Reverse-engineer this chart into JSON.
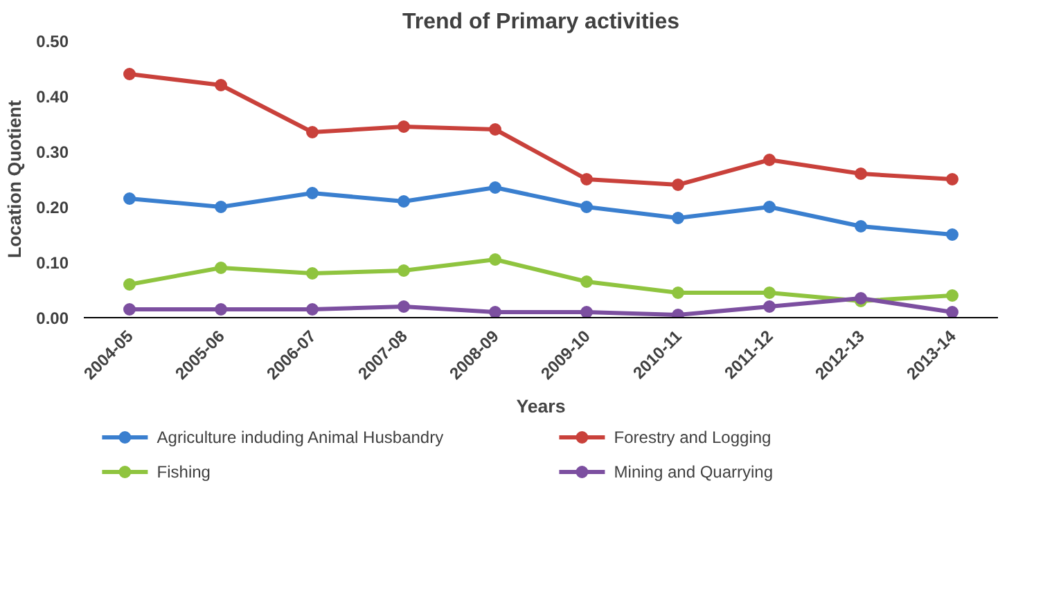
{
  "chart_data": {
    "type": "line",
    "title": "Trend of Primary activities",
    "xlabel": "Years",
    "ylabel": "Location Quotient",
    "categories": [
      "2004-05",
      "2005-06",
      "2006-07",
      "2007-08",
      "2008-09",
      "2009-10",
      "2010-11",
      "2011-12",
      "2012-13",
      "2013-14"
    ],
    "series": [
      {
        "name": "Agriculture induding Animal Husbandry",
        "color": "#3a7fcf",
        "values": [
          0.215,
          0.2,
          0.225,
          0.21,
          0.235,
          0.2,
          0.18,
          0.2,
          0.165,
          0.15
        ]
      },
      {
        "name": "Forestry and Logging",
        "color": "#c9413b",
        "values": [
          0.44,
          0.42,
          0.335,
          0.345,
          0.34,
          0.25,
          0.24,
          0.285,
          0.26,
          0.25
        ]
      },
      {
        "name": "Fishing",
        "color": "#8fc43f",
        "values": [
          0.06,
          0.09,
          0.08,
          0.085,
          0.105,
          0.065,
          0.045,
          0.045,
          0.03,
          0.04
        ]
      },
      {
        "name": "Mining and Quarrying",
        "color": "#7c4fa0",
        "values": [
          0.015,
          0.015,
          0.015,
          0.02,
          0.01,
          0.01,
          0.005,
          0.02,
          0.035,
          0.01
        ]
      }
    ],
    "ylim": [
      0,
      0.5
    ],
    "yticks": [
      {
        "value": 0,
        "label": "0.00"
      },
      {
        "value": 0.1,
        "label": "0.10"
      },
      {
        "value": 0.2,
        "label": "0.20"
      },
      {
        "value": 0.3,
        "label": "0.30"
      },
      {
        "value": 0.4,
        "label": "0.40"
      },
      {
        "value": 0.5,
        "label": "0.50"
      }
    ],
    "grid": false,
    "legend": "bottom",
    "marker": "circle",
    "line_style": "solid"
  }
}
